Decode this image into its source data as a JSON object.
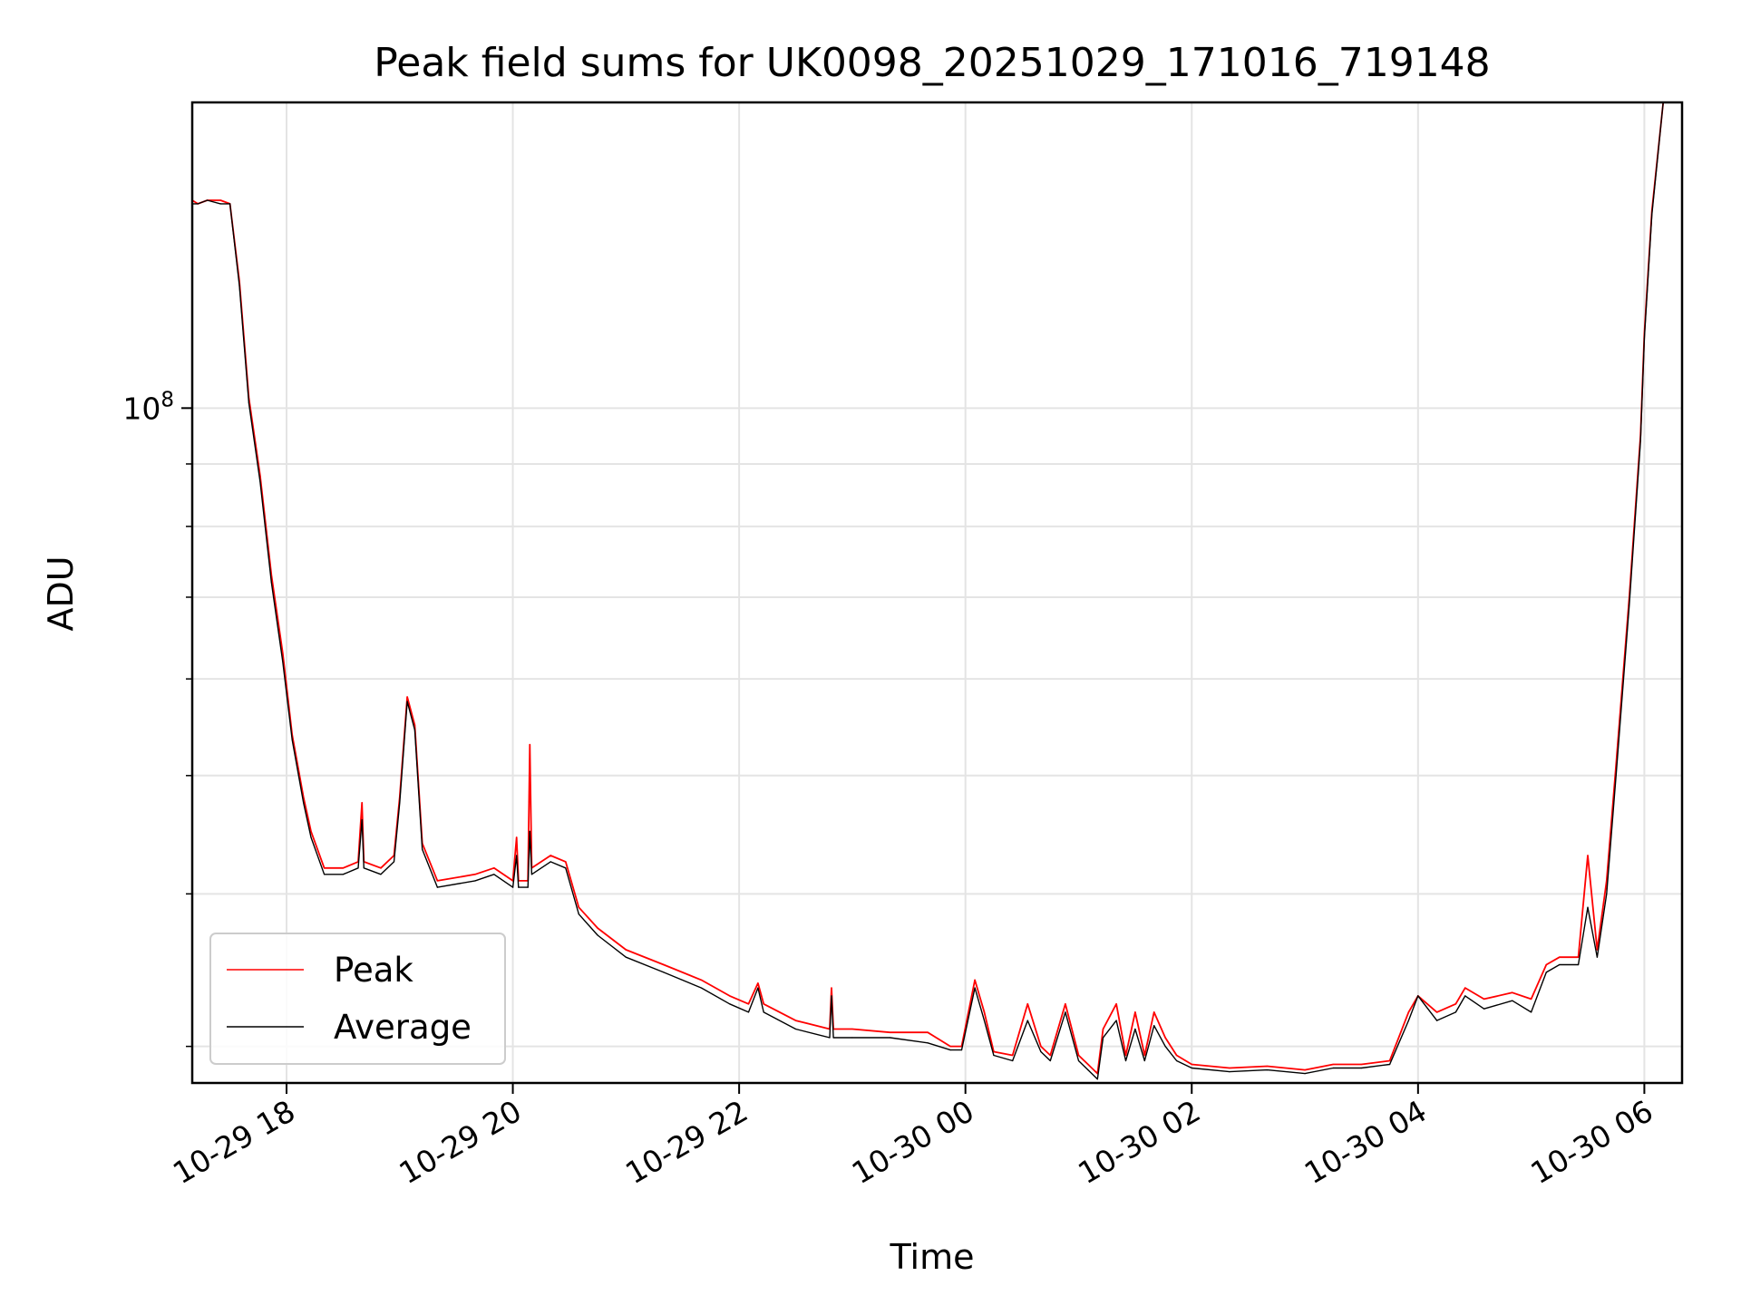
{
  "chart_data": {
    "type": "line",
    "title": "Peak field sums for UK0098_20251029_171016_719148",
    "xlabel": "Time",
    "ylabel": "ADU",
    "yscale": "log",
    "ylim": [
      28000000,
      178000000
    ],
    "xlim": [
      "2025-10-29 17:10",
      "2025-10-30 06:20"
    ],
    "grid": true,
    "legend_position": "lower-left",
    "x_ticks": [
      {
        "t": "2025-10-29 18:00",
        "label": "10-29 18"
      },
      {
        "t": "2025-10-29 20:00",
        "label": "10-29 20"
      },
      {
        "t": "2025-10-29 22:00",
        "label": "10-29 22"
      },
      {
        "t": "2025-10-30 00:00",
        "label": "10-30 00"
      },
      {
        "t": "2025-10-30 02:00",
        "label": "10-30 02"
      },
      {
        "t": "2025-10-30 04:00",
        "label": "10-30 04"
      },
      {
        "t": "2025-10-30 06:00",
        "label": "10-30 06"
      }
    ],
    "y_major_ticks": [
      {
        "value": 100000000,
        "label_base": "10",
        "label_exp": "8"
      }
    ],
    "y_minor_ticks": [
      30000000,
      40000000,
      50000000,
      60000000,
      70000000,
      80000000,
      90000000,
      200000000
    ],
    "series": [
      {
        "name": "Peak",
        "color": "#ff0000",
        "points": [
          [
            "2025-10-29 17:10",
            148000000.0
          ],
          [
            "2025-10-29 17:13",
            147000000.0
          ],
          [
            "2025-10-29 17:18",
            148000000.0
          ],
          [
            "2025-10-29 17:25",
            148000000.0
          ],
          [
            "2025-10-29 17:30",
            147000000.0
          ],
          [
            "2025-10-29 17:35",
            127000000.0
          ],
          [
            "2025-10-29 17:40",
            102000000.0
          ],
          [
            "2025-10-29 17:46",
            88000000.0
          ],
          [
            "2025-10-29 17:52",
            73000000.0
          ],
          [
            "2025-10-29 17:58",
            63000000.0
          ],
          [
            "2025-10-29 18:03",
            54000000.0
          ],
          [
            "2025-10-29 18:09",
            48000000.0
          ],
          [
            "2025-10-29 18:13",
            45000000.0
          ],
          [
            "2025-10-29 18:20",
            42000000.0
          ],
          [
            "2025-10-29 18:30",
            42000000.0
          ],
          [
            "2025-10-29 18:38",
            42500000.0
          ],
          [
            "2025-10-29 18:40",
            47500000.0
          ],
          [
            "2025-10-29 18:41",
            42500000.0
          ],
          [
            "2025-10-29 18:50",
            42000000.0
          ],
          [
            "2025-10-29 18:57",
            43000000.0
          ],
          [
            "2025-10-29 19:00",
            48000000.0
          ],
          [
            "2025-10-29 19:04",
            58000000.0
          ],
          [
            "2025-10-29 19:08",
            55000000.0
          ],
          [
            "2025-10-29 19:12",
            44000000.0
          ],
          [
            "2025-10-29 19:20",
            41000000.0
          ],
          [
            "2025-10-29 19:40",
            41500000.0
          ],
          [
            "2025-10-29 19:50",
            42000000.0
          ],
          [
            "2025-10-29 20:00",
            41000000.0
          ],
          [
            "2025-10-29 20:02",
            44500000.0
          ],
          [
            "2025-10-29 20:03",
            41000000.0
          ],
          [
            "2025-10-29 20:08",
            41000000.0
          ],
          [
            "2025-10-29 20:09",
            53000000.0
          ],
          [
            "2025-10-29 20:10",
            42000000.0
          ],
          [
            "2025-10-29 20:20",
            43000000.0
          ],
          [
            "2025-10-29 20:28",
            42500000.0
          ],
          [
            "2025-10-29 20:35",
            39000000.0
          ],
          [
            "2025-10-29 20:45",
            37500000.0
          ],
          [
            "2025-10-29 21:00",
            36000000.0
          ],
          [
            "2025-10-29 21:20",
            35000000.0
          ],
          [
            "2025-10-29 21:40",
            34000000.0
          ],
          [
            "2025-10-29 21:55",
            33000000.0
          ],
          [
            "2025-10-29 22:05",
            32500000.0
          ],
          [
            "2025-10-29 22:10",
            33800000.0
          ],
          [
            "2025-10-29 22:13",
            32500000.0
          ],
          [
            "2025-10-29 22:30",
            31500000.0
          ],
          [
            "2025-10-29 22:48",
            31000000.0
          ],
          [
            "2025-10-29 22:49",
            33500000.0
          ],
          [
            "2025-10-29 22:50",
            31000000.0
          ],
          [
            "2025-10-29 23:00",
            31000000.0
          ],
          [
            "2025-10-29 23:20",
            30800000.0
          ],
          [
            "2025-10-29 23:40",
            30800000.0
          ],
          [
            "2025-10-29 23:52",
            30000000.0
          ],
          [
            "2025-10-29 23:58",
            30000000.0
          ],
          [
            "2025-10-30 00:05",
            34000000.0
          ],
          [
            "2025-10-30 00:10",
            32000000.0
          ],
          [
            "2025-10-30 00:15",
            29700000.0
          ],
          [
            "2025-10-30 00:25",
            29500000.0
          ],
          [
            "2025-10-30 00:33",
            32500000.0
          ],
          [
            "2025-10-30 00:40",
            30000000.0
          ],
          [
            "2025-10-30 00:45",
            29500000.0
          ],
          [
            "2025-10-30 00:53",
            32500000.0
          ],
          [
            "2025-10-30 01:00",
            29500000.0
          ],
          [
            "2025-10-30 01:05",
            29000000.0
          ],
          [
            "2025-10-30 01:10",
            28500000.0
          ],
          [
            "2025-10-30 01:13",
            31000000.0
          ],
          [
            "2025-10-30 01:20",
            32500000.0
          ],
          [
            "2025-10-30 01:25",
            29500000.0
          ],
          [
            "2025-10-30 01:30",
            32000000.0
          ],
          [
            "2025-10-30 01:35",
            29500000.0
          ],
          [
            "2025-10-30 01:40",
            32000000.0
          ],
          [
            "2025-10-30 01:46",
            30500000.0
          ],
          [
            "2025-10-30 01:52",
            29500000.0
          ],
          [
            "2025-10-30 02:00",
            29000000.0
          ],
          [
            "2025-10-30 02:20",
            28800000.0
          ],
          [
            "2025-10-30 02:40",
            28900000.0
          ],
          [
            "2025-10-30 03:00",
            28700000.0
          ],
          [
            "2025-10-30 03:15",
            29000000.0
          ],
          [
            "2025-10-30 03:30",
            29000000.0
          ],
          [
            "2025-10-30 03:45",
            29200000.0
          ],
          [
            "2025-10-30 03:55",
            32000000.0
          ],
          [
            "2025-10-30 04:00",
            33000000.0
          ],
          [
            "2025-10-30 04:10",
            32000000.0
          ],
          [
            "2025-10-30 04:20",
            32500000.0
          ],
          [
            "2025-10-30 04:25",
            33500000.0
          ],
          [
            "2025-10-30 04:35",
            32800000.0
          ],
          [
            "2025-10-30 04:50",
            33200000.0
          ],
          [
            "2025-10-30 05:00",
            32800000.0
          ],
          [
            "2025-10-30 05:08",
            35000000.0
          ],
          [
            "2025-10-30 05:15",
            35500000.0
          ],
          [
            "2025-10-30 05:25",
            35500000.0
          ],
          [
            "2025-10-30 05:30",
            43000000.0
          ],
          [
            "2025-10-30 05:35",
            36000000.0
          ],
          [
            "2025-10-30 05:40",
            41000000.0
          ],
          [
            "2025-10-30 05:45",
            51000000.0
          ],
          [
            "2025-10-30 05:52",
            70000000.0
          ],
          [
            "2025-10-30 05:58",
            95000000.0
          ],
          [
            "2025-10-30 06:00",
            115000000.0
          ],
          [
            "2025-10-30 06:04",
            145000000.0
          ],
          [
            "2025-10-30 06:10",
            178000000.0
          ]
        ]
      },
      {
        "name": "Average",
        "color": "#000000",
        "points": [
          [
            "2025-10-29 17:10",
            147000000.0
          ],
          [
            "2025-10-29 17:13",
            147000000.0
          ],
          [
            "2025-10-29 17:18",
            148000000.0
          ],
          [
            "2025-10-29 17:25",
            147000000.0
          ],
          [
            "2025-10-29 17:30",
            147000000.0
          ],
          [
            "2025-10-29 17:35",
            126000000.0
          ],
          [
            "2025-10-29 17:40",
            101000000.0
          ],
          [
            "2025-10-29 17:46",
            87000000.0
          ],
          [
            "2025-10-29 17:52",
            72000000.0
          ],
          [
            "2025-10-29 17:58",
            62000000.0
          ],
          [
            "2025-10-29 18:03",
            53500000.0
          ],
          [
            "2025-10-29 18:09",
            47500000.0
          ],
          [
            "2025-10-29 18:13",
            44500000.0
          ],
          [
            "2025-10-29 18:20",
            41500000.0
          ],
          [
            "2025-10-29 18:30",
            41500000.0
          ],
          [
            "2025-10-29 18:38",
            42000000.0
          ],
          [
            "2025-10-29 18:40",
            46000000.0
          ],
          [
            "2025-10-29 18:41",
            42000000.0
          ],
          [
            "2025-10-29 18:50",
            41500000.0
          ],
          [
            "2025-10-29 18:57",
            42500000.0
          ],
          [
            "2025-10-29 19:00",
            47500000.0
          ],
          [
            "2025-10-29 19:04",
            57500000.0
          ],
          [
            "2025-10-29 19:08",
            54500000.0
          ],
          [
            "2025-10-29 19:12",
            43500000.0
          ],
          [
            "2025-10-29 19:20",
            40500000.0
          ],
          [
            "2025-10-29 19:40",
            41000000.0
          ],
          [
            "2025-10-29 19:50",
            41500000.0
          ],
          [
            "2025-10-29 20:00",
            40500000.0
          ],
          [
            "2025-10-29 20:02",
            43000000.0
          ],
          [
            "2025-10-29 20:03",
            40500000.0
          ],
          [
            "2025-10-29 20:08",
            40500000.0
          ],
          [
            "2025-10-29 20:09",
            45000000.0
          ],
          [
            "2025-10-29 20:10",
            41500000.0
          ],
          [
            "2025-10-29 20:20",
            42500000.0
          ],
          [
            "2025-10-29 20:28",
            42000000.0
          ],
          [
            "2025-10-29 20:35",
            38500000.0
          ],
          [
            "2025-10-29 20:45",
            37000000.0
          ],
          [
            "2025-10-29 21:00",
            35500000.0
          ],
          [
            "2025-10-29 21:20",
            34500000.0
          ],
          [
            "2025-10-29 21:40",
            33500000.0
          ],
          [
            "2025-10-29 21:55",
            32500000.0
          ],
          [
            "2025-10-29 22:05",
            32000000.0
          ],
          [
            "2025-10-29 22:10",
            33500000.0
          ],
          [
            "2025-10-29 22:13",
            32000000.0
          ],
          [
            "2025-10-29 22:30",
            31000000.0
          ],
          [
            "2025-10-29 22:48",
            30500000.0
          ],
          [
            "2025-10-29 22:49",
            33000000.0
          ],
          [
            "2025-10-29 22:50",
            30500000.0
          ],
          [
            "2025-10-29 23:00",
            30500000.0
          ],
          [
            "2025-10-29 23:20",
            30500000.0
          ],
          [
            "2025-10-29 23:40",
            30200000.0
          ],
          [
            "2025-10-29 23:52",
            29800000.0
          ],
          [
            "2025-10-29 23:58",
            29800000.0
          ],
          [
            "2025-10-30 00:05",
            33500000.0
          ],
          [
            "2025-10-30 00:10",
            31500000.0
          ],
          [
            "2025-10-30 00:15",
            29500000.0
          ],
          [
            "2025-10-30 00:25",
            29200000.0
          ],
          [
            "2025-10-30 00:33",
            31500000.0
          ],
          [
            "2025-10-30 00:40",
            29700000.0
          ],
          [
            "2025-10-30 00:45",
            29200000.0
          ],
          [
            "2025-10-30 00:53",
            32000000.0
          ],
          [
            "2025-10-30 01:00",
            29200000.0
          ],
          [
            "2025-10-30 01:05",
            28700000.0
          ],
          [
            "2025-10-30 01:10",
            28200000.0
          ],
          [
            "2025-10-30 01:13",
            30500000.0
          ],
          [
            "2025-10-30 01:20",
            31500000.0
          ],
          [
            "2025-10-30 01:25",
            29200000.0
          ],
          [
            "2025-10-30 01:30",
            31000000.0
          ],
          [
            "2025-10-30 01:35",
            29200000.0
          ],
          [
            "2025-10-30 01:40",
            31200000.0
          ],
          [
            "2025-10-30 01:46",
            30000000.0
          ],
          [
            "2025-10-30 01:52",
            29200000.0
          ],
          [
            "2025-10-30 02:00",
            28800000.0
          ],
          [
            "2025-10-30 02:20",
            28600000.0
          ],
          [
            "2025-10-30 02:40",
            28700000.0
          ],
          [
            "2025-10-30 03:00",
            28500000.0
          ],
          [
            "2025-10-30 03:15",
            28800000.0
          ],
          [
            "2025-10-30 03:30",
            28800000.0
          ],
          [
            "2025-10-30 03:45",
            29000000.0
          ],
          [
            "2025-10-30 03:55",
            31500000.0
          ],
          [
            "2025-10-30 04:00",
            33000000.0
          ],
          [
            "2025-10-30 04:10",
            31500000.0
          ],
          [
            "2025-10-30 04:20",
            32000000.0
          ],
          [
            "2025-10-30 04:25",
            33000000.0
          ],
          [
            "2025-10-30 04:35",
            32200000.0
          ],
          [
            "2025-10-30 04:50",
            32700000.0
          ],
          [
            "2025-10-30 05:00",
            32000000.0
          ],
          [
            "2025-10-30 05:08",
            34500000.0
          ],
          [
            "2025-10-30 05:15",
            35000000.0
          ],
          [
            "2025-10-30 05:25",
            35000000.0
          ],
          [
            "2025-10-30 05:30",
            39000000.0
          ],
          [
            "2025-10-30 05:35",
            35500000.0
          ],
          [
            "2025-10-30 05:40",
            40000000.0
          ],
          [
            "2025-10-30 05:45",
            50000000.0
          ],
          [
            "2025-10-30 05:52",
            69000000.0
          ],
          [
            "2025-10-30 05:58",
            94000000.0
          ],
          [
            "2025-10-30 06:00",
            114000000.0
          ],
          [
            "2025-10-30 06:04",
            144000000.0
          ],
          [
            "2025-10-30 06:10",
            178000000.0
          ]
        ]
      }
    ]
  }
}
